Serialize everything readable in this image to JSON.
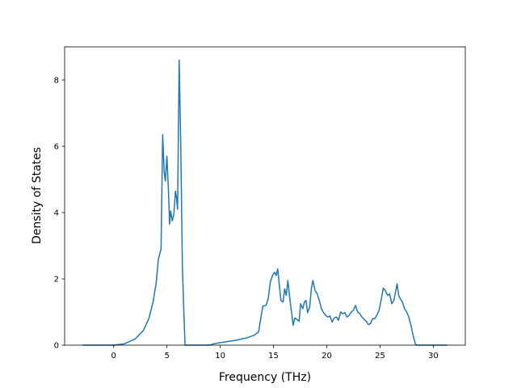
{
  "chart_data": {
    "type": "line",
    "title": "",
    "xlabel": "Frequency (THz)",
    "ylabel": "Density of States",
    "xlim": [
      -4.6,
      33.0
    ],
    "ylim": [
      0,
      9.0
    ],
    "xticks": [
      0,
      5,
      10,
      15,
      20,
      25,
      30
    ],
    "yticks": [
      0,
      2,
      4,
      6,
      8
    ],
    "grid": false,
    "legend": "none",
    "line_color": "#1f77b4",
    "series": [
      {
        "name": "",
        "points": [
          [
            -2.9,
            0.0
          ],
          [
            -1.0,
            0.0
          ],
          [
            0.0,
            0.0
          ],
          [
            1.0,
            0.04
          ],
          [
            2.0,
            0.18
          ],
          [
            2.8,
            0.45
          ],
          [
            3.3,
            0.8
          ],
          [
            3.7,
            1.3
          ],
          [
            4.0,
            1.9
          ],
          [
            4.2,
            2.6
          ],
          [
            4.45,
            2.9
          ],
          [
            4.6,
            6.35
          ],
          [
            4.75,
            5.2
          ],
          [
            4.85,
            4.95
          ],
          [
            5.0,
            5.7
          ],
          [
            5.15,
            4.6
          ],
          [
            5.25,
            3.65
          ],
          [
            5.35,
            4.05
          ],
          [
            5.5,
            3.75
          ],
          [
            5.65,
            3.95
          ],
          [
            5.8,
            4.65
          ],
          [
            5.9,
            4.45
          ],
          [
            6.0,
            4.1
          ],
          [
            6.15,
            8.6
          ],
          [
            6.3,
            6.0
          ],
          [
            6.45,
            2.4
          ],
          [
            6.6,
            0.9
          ],
          [
            6.7,
            0.0
          ],
          [
            9.0,
            0.0
          ],
          [
            9.5,
            0.05
          ],
          [
            10.5,
            0.1
          ],
          [
            11.5,
            0.15
          ],
          [
            12.5,
            0.22
          ],
          [
            13.2,
            0.3
          ],
          [
            13.6,
            0.4
          ],
          [
            14.0,
            1.18
          ],
          [
            14.3,
            1.2
          ],
          [
            14.5,
            1.4
          ],
          [
            14.7,
            1.9
          ],
          [
            14.9,
            2.1
          ],
          [
            15.1,
            2.2
          ],
          [
            15.25,
            2.1
          ],
          [
            15.4,
            2.3
          ],
          [
            15.55,
            1.8
          ],
          [
            15.7,
            1.35
          ],
          [
            15.9,
            1.3
          ],
          [
            16.05,
            1.7
          ],
          [
            16.2,
            1.5
          ],
          [
            16.35,
            1.95
          ],
          [
            16.5,
            1.5
          ],
          [
            16.65,
            1.1
          ],
          [
            16.85,
            0.6
          ],
          [
            17.0,
            0.82
          ],
          [
            17.2,
            0.78
          ],
          [
            17.4,
            0.72
          ],
          [
            17.55,
            1.25
          ],
          [
            17.75,
            1.1
          ],
          [
            17.9,
            1.3
          ],
          [
            18.05,
            1.35
          ],
          [
            18.2,
            0.98
          ],
          [
            18.4,
            1.15
          ],
          [
            18.55,
            1.7
          ],
          [
            18.7,
            1.95
          ],
          [
            18.9,
            1.65
          ],
          [
            19.1,
            1.55
          ],
          [
            19.3,
            1.35
          ],
          [
            19.5,
            1.1
          ],
          [
            19.7,
            0.98
          ],
          [
            19.9,
            0.9
          ],
          [
            20.1,
            0.85
          ],
          [
            20.3,
            0.88
          ],
          [
            20.5,
            0.7
          ],
          [
            20.7,
            0.82
          ],
          [
            20.9,
            0.85
          ],
          [
            21.1,
            0.75
          ],
          [
            21.3,
            1.0
          ],
          [
            21.5,
            0.95
          ],
          [
            21.7,
            0.98
          ],
          [
            21.9,
            0.85
          ],
          [
            22.1,
            0.9
          ],
          [
            22.3,
            1.0
          ],
          [
            22.5,
            1.05
          ],
          [
            22.7,
            1.2
          ],
          [
            22.9,
            1.0
          ],
          [
            23.1,
            0.95
          ],
          [
            23.3,
            0.85
          ],
          [
            23.5,
            0.78
          ],
          [
            23.7,
            0.72
          ],
          [
            23.9,
            0.62
          ],
          [
            24.1,
            0.65
          ],
          [
            24.3,
            0.8
          ],
          [
            24.5,
            0.8
          ],
          [
            24.7,
            0.9
          ],
          [
            24.9,
            1.05
          ],
          [
            25.1,
            1.35
          ],
          [
            25.3,
            1.72
          ],
          [
            25.5,
            1.65
          ],
          [
            25.7,
            1.5
          ],
          [
            25.9,
            1.55
          ],
          [
            26.1,
            1.25
          ],
          [
            26.3,
            1.35
          ],
          [
            26.45,
            1.6
          ],
          [
            26.6,
            1.85
          ],
          [
            26.75,
            1.5
          ],
          [
            26.9,
            1.4
          ],
          [
            27.1,
            1.3
          ],
          [
            27.3,
            1.1
          ],
          [
            27.5,
            1.0
          ],
          [
            27.7,
            0.85
          ],
          [
            27.9,
            0.6
          ],
          [
            28.1,
            0.3
          ],
          [
            28.3,
            0.05
          ],
          [
            28.4,
            0.0
          ],
          [
            30.0,
            0.0
          ],
          [
            31.3,
            0.0
          ]
        ]
      }
    ]
  }
}
